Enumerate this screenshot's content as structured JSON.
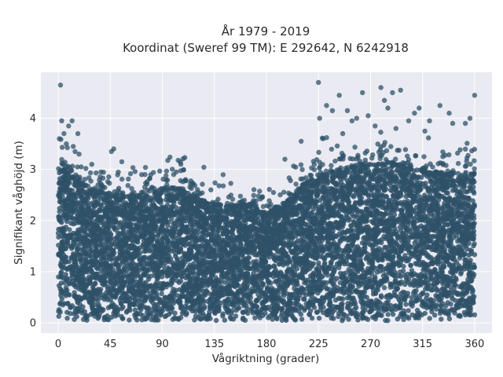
{
  "chart_data": {
    "type": "scatter",
    "title_line1": "År 1979 - 2019",
    "title_line2": "Koordinat (Sweref 99 TM): E 292642, N 6242918",
    "xlabel": "Vågriktning (grader)",
    "ylabel": "Signifikant våghöjd (m)",
    "xlim": [
      -15,
      375
    ],
    "ylim": [
      -0.2,
      4.9
    ],
    "x_ticks": [
      0,
      45,
      90,
      135,
      180,
      225,
      270,
      315,
      360
    ],
    "y_ticks": [
      0,
      1,
      2,
      3,
      4
    ],
    "grid": true,
    "background_color": "#eaeaf2",
    "point_color": "#2e5168",
    "envelope": {
      "x": [
        0,
        5,
        15,
        30,
        45,
        60,
        75,
        90,
        105,
        120,
        135,
        150,
        165,
        180,
        195,
        210,
        225,
        240,
        255,
        270,
        285,
        300,
        315,
        330,
        345,
        360
      ],
      "y": [
        2.9,
        3.0,
        2.8,
        2.55,
        2.5,
        2.45,
        2.45,
        2.6,
        2.6,
        2.4,
        2.3,
        2.25,
        2.3,
        2.1,
        2.3,
        2.65,
        2.85,
        2.95,
        3.0,
        3.05,
        3.1,
        3.05,
        2.95,
        2.9,
        2.85,
        2.9
      ]
    },
    "outliers": [
      {
        "x": 2,
        "y": 4.65
      },
      {
        "x": 3,
        "y": 3.95
      },
      {
        "x": 5,
        "y": 3.7
      },
      {
        "x": 12,
        "y": 3.95
      },
      {
        "x": 9,
        "y": 3.85
      },
      {
        "x": 17,
        "y": 3.7
      },
      {
        "x": 7,
        "y": 3.5
      },
      {
        "x": 13,
        "y": 3.45
      },
      {
        "x": 1,
        "y": 3.6
      },
      {
        "x": 18,
        "y": 3.3
      },
      {
        "x": 48,
        "y": 3.4
      },
      {
        "x": 46,
        "y": 3.35
      },
      {
        "x": 55,
        "y": 3.15
      },
      {
        "x": 29,
        "y": 3.1
      },
      {
        "x": 37,
        "y": 2.95
      },
      {
        "x": 75,
        "y": 2.9
      },
      {
        "x": 106,
        "y": 3.1
      },
      {
        "x": 102,
        "y": 2.95
      },
      {
        "x": 110,
        "y": 2.8
      },
      {
        "x": 225,
        "y": 4.7
      },
      {
        "x": 232,
        "y": 4.25
      },
      {
        "x": 243,
        "y": 4.45
      },
      {
        "x": 237,
        "y": 4.15
      },
      {
        "x": 226,
        "y": 4.0
      },
      {
        "x": 250,
        "y": 4.15
      },
      {
        "x": 254,
        "y": 3.95
      },
      {
        "x": 258,
        "y": 4.0
      },
      {
        "x": 263,
        "y": 4.5
      },
      {
        "x": 268,
        "y": 4.05
      },
      {
        "x": 279,
        "y": 4.6
      },
      {
        "x": 282,
        "y": 4.35
      },
      {
        "x": 285,
        "y": 4.2
      },
      {
        "x": 289,
        "y": 4.5
      },
      {
        "x": 296,
        "y": 4.55
      },
      {
        "x": 303,
        "y": 3.95
      },
      {
        "x": 308,
        "y": 4.1
      },
      {
        "x": 312,
        "y": 4.2
      },
      {
        "x": 321,
        "y": 3.95
      },
      {
        "x": 330,
        "y": 4.25
      },
      {
        "x": 338,
        "y": 4.1
      },
      {
        "x": 341,
        "y": 3.9
      },
      {
        "x": 352,
        "y": 3.9
      },
      {
        "x": 356,
        "y": 4.0
      },
      {
        "x": 360,
        "y": 4.45
      },
      {
        "x": 274,
        "y": 3.85
      },
      {
        "x": 292,
        "y": 3.8
      },
      {
        "x": 317,
        "y": 3.75
      },
      {
        "x": 229,
        "y": 3.6
      },
      {
        "x": 246,
        "y": 3.7
      },
      {
        "x": 210,
        "y": 3.55
      },
      {
        "x": 196,
        "y": 3.2
      }
    ]
  }
}
